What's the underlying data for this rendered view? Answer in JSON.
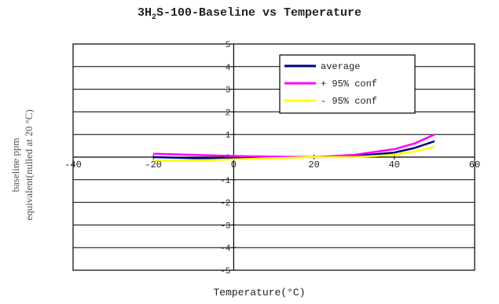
{
  "chart_data": {
    "type": "line",
    "title_parts": [
      "3H",
      "2",
      "S-100-Baseline vs Temperature"
    ],
    "xlabel": "Temperature(°C)",
    "ylabel_lines": [
      "baseline ppm",
      "equivalent(nulled at 20 °C)"
    ],
    "xlim": [
      -40,
      60
    ],
    "ylim": [
      -5,
      5
    ],
    "x_ticks": [
      "-40",
      "-20",
      "0",
      "20",
      "40",
      "60"
    ],
    "y_ticks": [
      "5",
      "4",
      "3",
      "2",
      "1",
      "0",
      "-1",
      "-2",
      "-3",
      "-4",
      "-5"
    ],
    "grid": true,
    "legend_position": "top-right",
    "series": [
      {
        "name": "average",
        "color": "#000080",
        "x": [
          -20,
          -10,
          0,
          10,
          20,
          30,
          40,
          45,
          50
        ],
        "y": [
          0.0,
          -0.05,
          -0.05,
          -0.02,
          0.0,
          0.05,
          0.2,
          0.4,
          0.7
        ]
      },
      {
        "name": "+ 95% conf",
        "color": "#ff00ff",
        "x": [
          -20,
          -10,
          0,
          10,
          20,
          30,
          40,
          45,
          50
        ],
        "y": [
          0.15,
          0.1,
          0.05,
          0.02,
          0.0,
          0.1,
          0.35,
          0.6,
          1.0
        ]
      },
      {
        "name": "- 95% conf",
        "color": "#ffff00",
        "x": [
          -20,
          -10,
          0,
          10,
          20,
          30,
          40,
          45,
          50
        ],
        "y": [
          -0.15,
          -0.15,
          -0.1,
          -0.05,
          0.0,
          0.0,
          0.1,
          0.25,
          0.45
        ]
      }
    ]
  }
}
